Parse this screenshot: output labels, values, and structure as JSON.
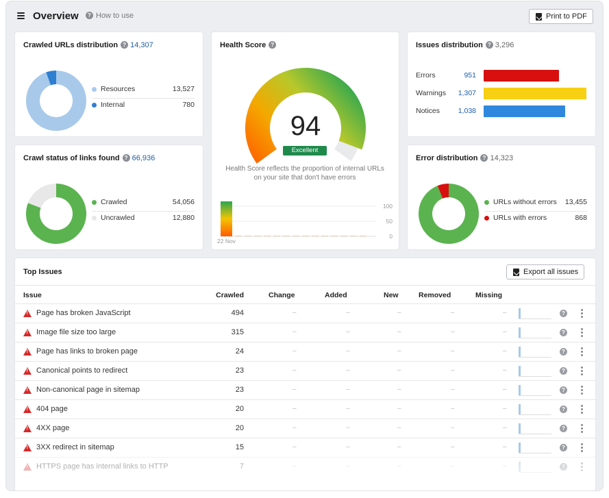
{
  "header": {
    "title": "Overview",
    "how_to_use": "How to use",
    "print_label": "Print to PDF"
  },
  "crawled_urls": {
    "title": "Crawled URLs distribution",
    "total": "14,307",
    "items": [
      {
        "label": "Resources",
        "value": "13,527",
        "color": "#a8c9ea"
      },
      {
        "label": "Internal",
        "value": "780",
        "color": "#2f7fd1"
      }
    ]
  },
  "crawl_status": {
    "title": "Crawl status of links found",
    "total": "66,936",
    "items": [
      {
        "label": "Crawled",
        "value": "54,056",
        "color": "#5bb350"
      },
      {
        "label": "Uncrawled",
        "value": "12,880",
        "color": "#e8e8e8"
      }
    ]
  },
  "health": {
    "title": "Health Score",
    "score": "94",
    "badge": "Excellent",
    "description": "Health Score reflects the proportion of internal URLs on your site that don't have errors",
    "chart": {
      "date_label": "22 Nov",
      "y_ticks": [
        "100",
        "50",
        "0"
      ]
    }
  },
  "issues_dist": {
    "title": "Issues distribution",
    "total": "3,296",
    "items": [
      {
        "label": "Errors",
        "value": "951",
        "color": "#d80f0f"
      },
      {
        "label": "Warnings",
        "value": "1,307",
        "color": "#f7cf13"
      },
      {
        "label": "Notices",
        "value": "1,038",
        "color": "#2f88de"
      }
    ]
  },
  "error_dist": {
    "title": "Error distribution",
    "total": "14,323",
    "items": [
      {
        "label": "URLs without errors",
        "value": "13,455",
        "color": "#5bb350"
      },
      {
        "label": "URLs with errors",
        "value": "868",
        "color": "#d80f0f"
      }
    ]
  },
  "top_issues": {
    "title": "Top Issues",
    "export_label": "Export all issues",
    "columns": [
      "Issue",
      "Crawled",
      "Change",
      "Added",
      "New",
      "Removed",
      "Missing"
    ],
    "dash": "–",
    "rows": [
      {
        "issue": "Page has broken JavaScript",
        "crawled": "494"
      },
      {
        "issue": "Image file size too large",
        "crawled": "315"
      },
      {
        "issue": "Page has links to broken page",
        "crawled": "24"
      },
      {
        "issue": "Canonical points to redirect",
        "crawled": "23"
      },
      {
        "issue": "Non-canonical page in sitemap",
        "crawled": "23"
      },
      {
        "issue": "404 page",
        "crawled": "20"
      },
      {
        "issue": "4XX page",
        "crawled": "20"
      },
      {
        "issue": "3XX redirect in sitemap",
        "crawled": "15"
      },
      {
        "issue": "HTTPS page has internal links to HTTP",
        "crawled": "7"
      }
    ]
  }
}
